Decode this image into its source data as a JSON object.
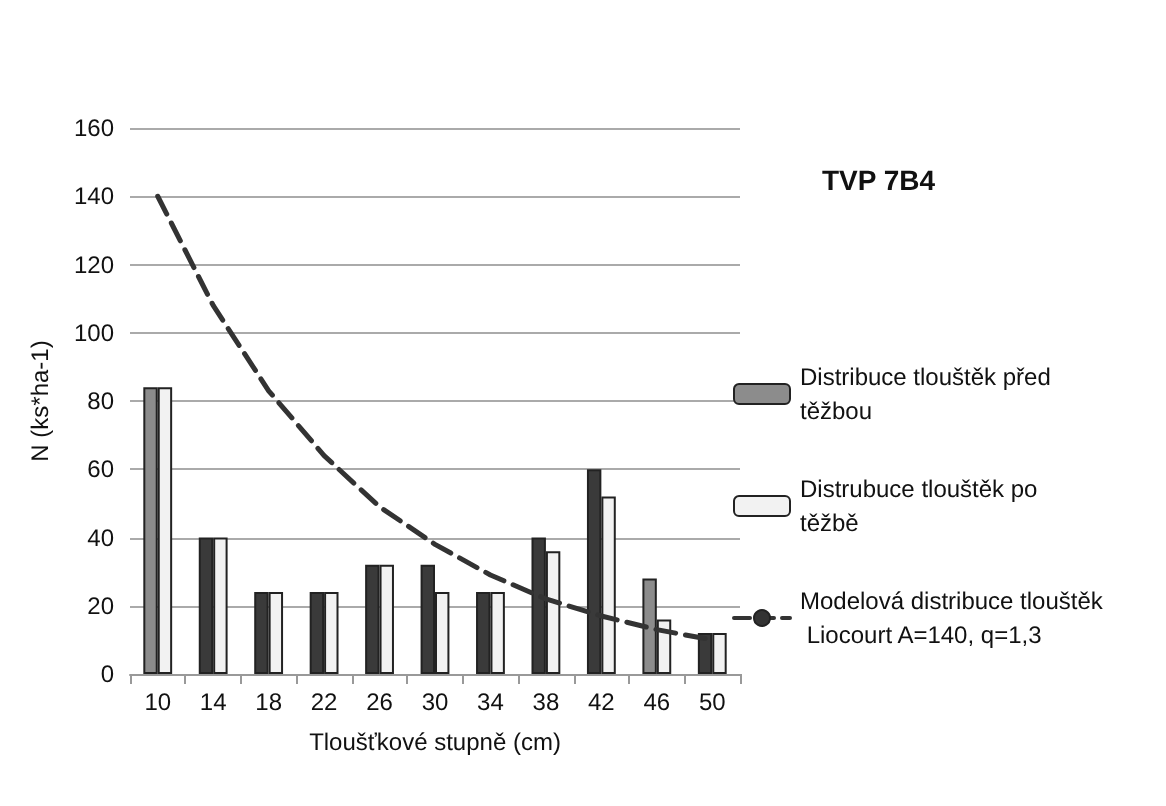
{
  "chart_data": {
    "type": "bar",
    "title": "TVP 7B4",
    "xlabel": "Tloušťkové stupně (cm)",
    "ylabel": "N (ks*ha-1)",
    "categories": [
      "10",
      "14",
      "18",
      "22",
      "26",
      "30",
      "34",
      "38",
      "42",
      "46",
      "50"
    ],
    "series": [
      {
        "name": "Distribuce tlouštěk před těžbou",
        "color": "#8c8c8c",
        "colors": [
          "#8c8c8c",
          "#3a3a3a",
          "#3a3a3a",
          "#3a3a3a",
          "#3a3a3a",
          "#3a3a3a",
          "#3a3a3a",
          "#3a3a3a",
          "#3a3a3a",
          "#8c8c8c",
          "#3a3a3a"
        ],
        "values": [
          84,
          40,
          24,
          24,
          32,
          32,
          24,
          40,
          60,
          28,
          12
        ]
      },
      {
        "name": "Distrubuce tlouštěk po těžbě",
        "color": "#f2f2f2",
        "values": [
          84,
          40,
          24,
          24,
          32,
          24,
          24,
          36,
          52,
          16,
          12
        ]
      },
      {
        "name": "Modelová distribuce tlouštěk Liocourt A=140, q=1,3",
        "type": "line",
        "color": "#333333",
        "line_style": "dashed",
        "marker": "none",
        "values": [
          140,
          108,
          83,
          64,
          49,
          38,
          29,
          22,
          17,
          13,
          10
        ]
      }
    ],
    "ylim": [
      0,
      160
    ],
    "yticks": [
      0,
      20,
      40,
      60,
      80,
      100,
      120,
      140,
      160
    ],
    "grid": "y",
    "legend": "right"
  }
}
